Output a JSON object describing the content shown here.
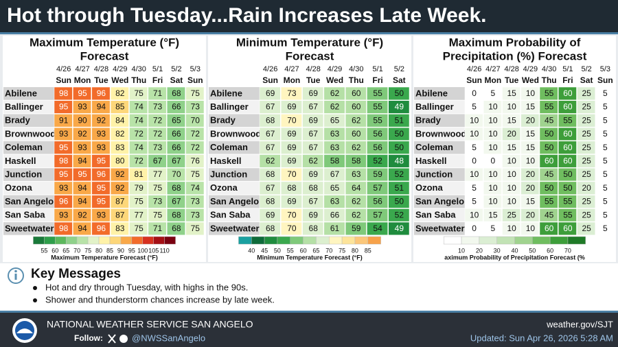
{
  "title": "Hot through Tuesday...Rain Increases Late Week.",
  "panels": [
    {
      "title": [
        "Maximum Temperature (°F)",
        "Forecast"
      ],
      "dates": [
        "4/26",
        "4/27",
        "4/28",
        "4/29",
        "4/30",
        "5/1",
        "5/2",
        "5/3"
      ],
      "days": [
        "Sun",
        "Mon",
        "Tue",
        "Wed",
        "Thu",
        "Fri",
        "Sat",
        "Sun"
      ],
      "rows": [
        {
          "name": "Abilene",
          "values": [
            98,
            95,
            96,
            82,
            75,
            71,
            68,
            75
          ]
        },
        {
          "name": "Ballinger",
          "values": [
            95,
            93,
            94,
            85,
            74,
            73,
            66,
            73
          ]
        },
        {
          "name": "Brady",
          "values": [
            91,
            90,
            92,
            84,
            74,
            72,
            65,
            70
          ]
        },
        {
          "name": "Brownwood",
          "values": [
            93,
            92,
            93,
            82,
            72,
            72,
            66,
            72
          ]
        },
        {
          "name": "Coleman",
          "values": [
            95,
            93,
            93,
            83,
            74,
            73,
            66,
            72
          ]
        },
        {
          "name": "Haskell",
          "values": [
            98,
            94,
            95,
            80,
            72,
            67,
            67,
            76
          ]
        },
        {
          "name": "Junction",
          "values": [
            95,
            95,
            96,
            92,
            81,
            77,
            70,
            75
          ]
        },
        {
          "name": "Ozona",
          "values": [
            93,
            94,
            95,
            92,
            79,
            75,
            68,
            74
          ]
        },
        {
          "name": "San Angelo",
          "values": [
            96,
            94,
            95,
            87,
            75,
            73,
            67,
            73
          ]
        },
        {
          "name": "San Saba",
          "values": [
            93,
            92,
            93,
            87,
            77,
            75,
            68,
            73
          ]
        },
        {
          "name": "Sweetwater",
          "values": [
            98,
            94,
            96,
            83,
            75,
            71,
            68,
            75
          ]
        }
      ],
      "legend": {
        "ticks": [
          55,
          60,
          65,
          70,
          75,
          80,
          85,
          90,
          95,
          100,
          105,
          110
        ],
        "colors": [
          "#1a7a3a",
          "#2e9e4a",
          "#5cb85c",
          "#8fd18a",
          "#b8e3a8",
          "#e2f2c8",
          "#fff2a8",
          "#fdd77a",
          "#f9a848",
          "#f26b2a",
          "#d7301f",
          "#a50f15",
          "#7a0010"
        ],
        "label": "Maximum Temperature Forecast (°F)"
      }
    },
    {
      "title": [
        "Minimum Temperature (°F)",
        "Forecast"
      ],
      "dates": [
        "4/26",
        "4/27",
        "4/28",
        "4/29",
        "4/30",
        "5/1",
        "5/2"
      ],
      "days": [
        "Sun",
        "Mon",
        "Tue",
        "Wed",
        "Thu",
        "Fri",
        "Sat"
      ],
      "rows": [
        {
          "name": "Abilene",
          "values": [
            69,
            73,
            69,
            62,
            60,
            55,
            50
          ]
        },
        {
          "name": "Ballinger",
          "values": [
            67,
            69,
            67,
            62,
            60,
            55,
            49
          ]
        },
        {
          "name": "Brady",
          "values": [
            68,
            70,
            69,
            65,
            62,
            55,
            51
          ]
        },
        {
          "name": "Brownwood",
          "values": [
            67,
            69,
            67,
            63,
            60,
            56,
            50
          ]
        },
        {
          "name": "Coleman",
          "values": [
            67,
            69,
            67,
            63,
            62,
            56,
            50
          ]
        },
        {
          "name": "Haskell",
          "values": [
            62,
            69,
            62,
            58,
            58,
            52,
            48
          ]
        },
        {
          "name": "Junction",
          "values": [
            68,
            70,
            69,
            67,
            63,
            59,
            52
          ]
        },
        {
          "name": "Ozona",
          "values": [
            67,
            68,
            68,
            65,
            64,
            57,
            51
          ]
        },
        {
          "name": "San Angelo",
          "values": [
            68,
            69,
            67,
            63,
            62,
            56,
            50
          ]
        },
        {
          "name": "San Saba",
          "values": [
            69,
            70,
            69,
            66,
            62,
            57,
            52
          ]
        },
        {
          "name": "Sweetwater",
          "values": [
            68,
            70,
            68,
            61,
            59,
            54,
            49
          ]
        }
      ],
      "legend": {
        "ticks": [
          40,
          45,
          50,
          55,
          60,
          65,
          70,
          75,
          80,
          85
        ],
        "colors": [
          "#1aa0a0",
          "#0e6b3a",
          "#1f8c3e",
          "#3aa84d",
          "#7fc97a",
          "#b5e0a6",
          "#dcefcf",
          "#fff5c0",
          "#fde49a",
          "#fbc77a",
          "#f7a24a"
        ],
        "label": "Minimum Temperature Forecast (°F)"
      }
    },
    {
      "title": [
        "Maximum Probability of",
        "Precipitation (%) Forecast"
      ],
      "dates": [
        "4/26",
        "4/27",
        "4/28",
        "4/29",
        "4/30",
        "5/1",
        "5/2",
        "5/3"
      ],
      "days": [
        "Sun",
        "Mon",
        "Tue",
        "Wed",
        "Thu",
        "Fri",
        "Sat",
        "Sun"
      ],
      "rows": [
        {
          "name": "Abilene",
          "values": [
            0,
            5,
            15,
            10,
            55,
            60,
            25,
            5
          ]
        },
        {
          "name": "Ballinger",
          "values": [
            5,
            10,
            10,
            15,
            55,
            60,
            25,
            5
          ]
        },
        {
          "name": "Brady",
          "values": [
            10,
            10,
            15,
            20,
            45,
            55,
            25,
            5
          ]
        },
        {
          "name": "Brownwood",
          "values": [
            10,
            10,
            20,
            15,
            50,
            60,
            25,
            5
          ]
        },
        {
          "name": "Coleman",
          "values": [
            5,
            10,
            15,
            15,
            50,
            60,
            25,
            5
          ]
        },
        {
          "name": "Haskell",
          "values": [
            0,
            0,
            10,
            10,
            60,
            60,
            25,
            5
          ]
        },
        {
          "name": "Junction",
          "values": [
            10,
            10,
            10,
            20,
            45,
            50,
            25,
            5
          ]
        },
        {
          "name": "Ozona",
          "values": [
            5,
            10,
            10,
            20,
            50,
            50,
            20,
            5
          ]
        },
        {
          "name": "San Angelo",
          "values": [
            5,
            10,
            10,
            15,
            55,
            55,
            25,
            5
          ]
        },
        {
          "name": "San Saba",
          "values": [
            10,
            15,
            25,
            20,
            45,
            55,
            25,
            5
          ]
        },
        {
          "name": "Sweetwater",
          "values": [
            0,
            5,
            10,
            10,
            60,
            60,
            25,
            5
          ]
        }
      ],
      "legend": {
        "ticks": [
          10,
          20,
          30,
          40,
          50,
          60,
          70
        ],
        "colors": [
          "#ffffff",
          "#f2f8ee",
          "#dbeed3",
          "#c2e3b5",
          "#a0d38f",
          "#6fbd5f",
          "#3d9e3a",
          "#1f7a27"
        ],
        "label": "aximum Probability of Precipitation Forecast (%"
      }
    }
  ],
  "key_messages": {
    "heading": "Key Messages",
    "items": [
      "Hot and dry through Tuesday, with highs in the 90s.",
      "Shower and thunderstorm chances increase by late week."
    ]
  },
  "footer": {
    "office": "NATIONAL WEATHER SERVICE SAN ANGELO",
    "follow": "Follow:",
    "handle": "@NWSSanAngelo",
    "website": "weather.gov/SJT",
    "updated": "Updated: Sun Apr 26, 2026 5:28 AM"
  }
}
